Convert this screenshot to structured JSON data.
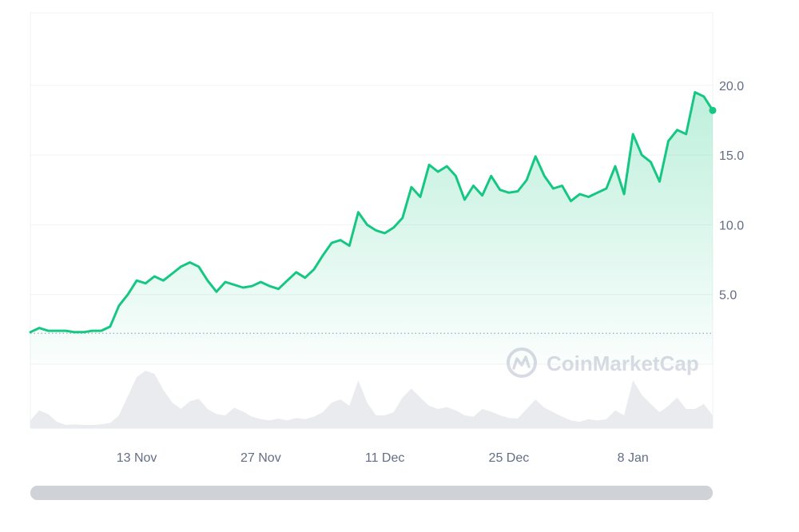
{
  "chart_data": {
    "type": "area",
    "title": "",
    "xlabel": "",
    "ylabel": "",
    "x_tick_labels": [
      "13 Nov",
      "27 Nov",
      "11 Dec",
      "25 Dec",
      "8 Jan"
    ],
    "y_tick_labels": [
      "5.0",
      "10.0",
      "15.0",
      "20.0"
    ],
    "y_ticks": [
      5,
      10,
      15,
      20
    ],
    "ylim": [
      0,
      25.2
    ],
    "x_start": "2023-11-01",
    "x_end": "2024-01-17",
    "reference_line": 2.22,
    "grid": true,
    "series": [
      {
        "values": [
          [
            "2023-11-01",
            2.3
          ],
          [
            "2023-11-02",
            2.6
          ],
          [
            "2023-11-03",
            2.4
          ],
          [
            "2023-11-04",
            2.4
          ],
          [
            "2023-11-05",
            2.4
          ],
          [
            "2023-11-06",
            2.3
          ],
          [
            "2023-11-07",
            2.3
          ],
          [
            "2023-11-08",
            2.4
          ],
          [
            "2023-11-09",
            2.4
          ],
          [
            "2023-11-10",
            2.7
          ],
          [
            "2023-11-11",
            4.2
          ],
          [
            "2023-11-12",
            5.0
          ],
          [
            "2023-11-13",
            6.0
          ],
          [
            "2023-11-14",
            5.8
          ],
          [
            "2023-11-15",
            6.3
          ],
          [
            "2023-11-16",
            6.0
          ],
          [
            "2023-11-17",
            6.5
          ],
          [
            "2023-11-18",
            7.0
          ],
          [
            "2023-11-19",
            7.3
          ],
          [
            "2023-11-20",
            7.0
          ],
          [
            "2023-11-21",
            6.0
          ],
          [
            "2023-11-22",
            5.2
          ],
          [
            "2023-11-23",
            5.9
          ],
          [
            "2023-11-24",
            5.7
          ],
          [
            "2023-11-25",
            5.5
          ],
          [
            "2023-11-26",
            5.6
          ],
          [
            "2023-11-27",
            5.9
          ],
          [
            "2023-11-28",
            5.6
          ],
          [
            "2023-11-29",
            5.4
          ],
          [
            "2023-11-30",
            6.0
          ],
          [
            "2023-12-01",
            6.6
          ],
          [
            "2023-12-02",
            6.2
          ],
          [
            "2023-12-03",
            6.8
          ],
          [
            "2023-12-04",
            7.8
          ],
          [
            "2023-12-05",
            8.7
          ],
          [
            "2023-12-06",
            8.9
          ],
          [
            "2023-12-07",
            8.5
          ],
          [
            "2023-12-08",
            10.9
          ],
          [
            "2023-12-09",
            10.0
          ],
          [
            "2023-12-10",
            9.6
          ],
          [
            "2023-12-11",
            9.4
          ],
          [
            "2023-12-12",
            9.8
          ],
          [
            "2023-12-13",
            10.5
          ],
          [
            "2023-12-14",
            12.7
          ],
          [
            "2023-12-15",
            12.0
          ],
          [
            "2023-12-16",
            14.3
          ],
          [
            "2023-12-17",
            13.8
          ],
          [
            "2023-12-18",
            14.2
          ],
          [
            "2023-12-19",
            13.5
          ],
          [
            "2023-12-20",
            11.8
          ],
          [
            "2023-12-21",
            12.8
          ],
          [
            "2023-12-22",
            12.1
          ],
          [
            "2023-12-23",
            13.5
          ],
          [
            "2023-12-24",
            12.5
          ],
          [
            "2023-12-25",
            12.3
          ],
          [
            "2023-12-26",
            12.4
          ],
          [
            "2023-12-27",
            13.2
          ],
          [
            "2023-12-28",
            14.9
          ],
          [
            "2023-12-29",
            13.5
          ],
          [
            "2023-12-30",
            12.6
          ],
          [
            "2023-12-31",
            12.8
          ],
          [
            "2024-01-01",
            11.7
          ],
          [
            "2024-01-02",
            12.2
          ],
          [
            "2024-01-03",
            12.0
          ],
          [
            "2024-01-04",
            12.3
          ],
          [
            "2024-01-05",
            12.6
          ],
          [
            "2024-01-06",
            14.2
          ],
          [
            "2024-01-07",
            12.2
          ],
          [
            "2024-01-08",
            16.5
          ],
          [
            "2024-01-09",
            15.0
          ],
          [
            "2024-01-10",
            14.5
          ],
          [
            "2024-01-11",
            13.1
          ],
          [
            "2024-01-12",
            16.0
          ],
          [
            "2024-01-13",
            16.8
          ],
          [
            "2024-01-14",
            16.5
          ],
          [
            "2024-01-15",
            19.5
          ],
          [
            "2024-01-16",
            19.2
          ],
          [
            "2024-01-17",
            18.2
          ]
        ]
      }
    ],
    "volume": [
      12,
      28,
      22,
      10,
      5,
      6,
      5,
      5,
      6,
      8,
      20,
      50,
      80,
      90,
      85,
      60,
      40,
      30,
      42,
      46,
      30,
      22,
      20,
      32,
      26,
      18,
      14,
      12,
      15,
      12,
      16,
      14,
      18,
      25,
      40,
      45,
      35,
      75,
      40,
      20,
      20,
      25,
      48,
      62,
      48,
      35,
      30,
      33,
      28,
      20,
      18,
      30,
      26,
      20,
      16,
      15,
      30,
      45,
      32,
      25,
      18,
      12,
      10,
      14,
      12,
      14,
      28,
      20,
      75,
      52,
      38,
      25,
      35,
      48,
      30,
      30,
      38,
      20
    ]
  },
  "watermark": {
    "text": "CoinMarketCap"
  },
  "colors": {
    "line": "#16c784",
    "area_top": "#16c784",
    "grid": "#eff2f5",
    "volume": "#e9ebee",
    "scrollbar": "#cfd2d7",
    "reference_line": "#a1a7bb",
    "tick_text": "#616e85"
  }
}
